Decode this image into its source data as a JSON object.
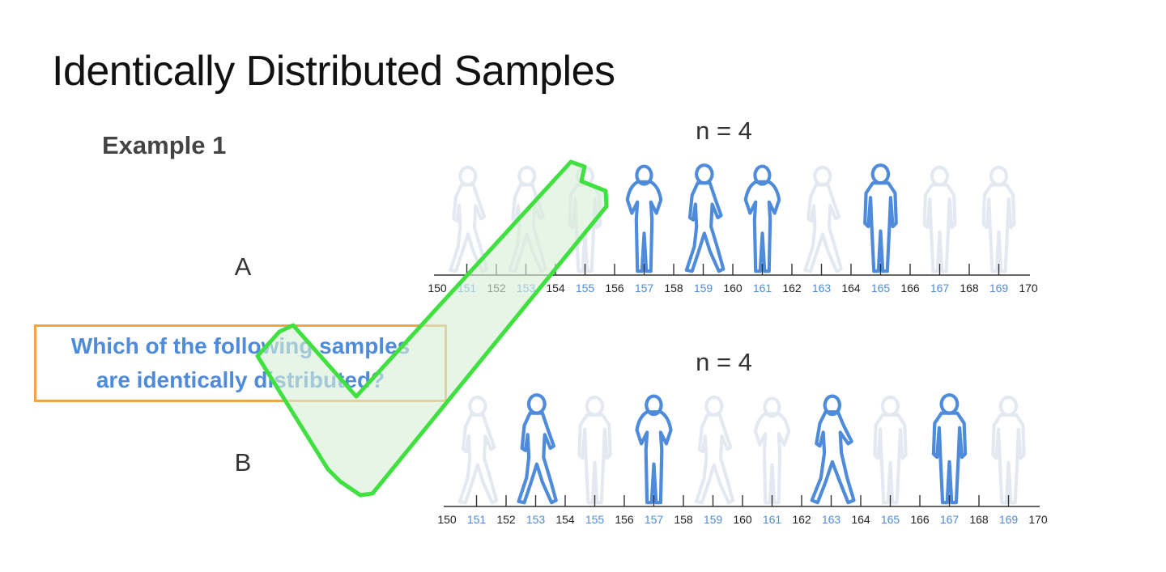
{
  "slide": {
    "title": "Identically Distributed Samples",
    "example_label": "Example 1",
    "question_line1": "Which of the following samples",
    "question_line2": "are identically distributed?"
  },
  "colors": {
    "blue": "#4e8cdb",
    "faded": "#e4e8f0",
    "box_border": "#f0a24c",
    "check_green": "#3fe03f",
    "check_fill": "#d8efd8"
  },
  "rows": [
    {
      "label": "A",
      "n_label": "n = 4",
      "ticks": [
        "150",
        "151",
        "152",
        "153",
        "154",
        "155",
        "156",
        "157",
        "158",
        "159",
        "160",
        "161",
        "162",
        "163",
        "164",
        "165",
        "166",
        "167",
        "168",
        "169",
        "170"
      ],
      "blue_ticks": [
        "151",
        "153",
        "155",
        "157",
        "159",
        "161",
        "163",
        "165",
        "167",
        "169"
      ],
      "people": [
        {
          "x": 151,
          "type": "walk",
          "sampled": false
        },
        {
          "x": 153,
          "type": "walk",
          "sampled": false
        },
        {
          "x": 155,
          "type": "stand",
          "sampled": false
        },
        {
          "x": 157,
          "type": "woman",
          "sampled": true
        },
        {
          "x": 159,
          "type": "walk",
          "sampled": true
        },
        {
          "x": 161,
          "type": "woman",
          "sampled": true
        },
        {
          "x": 163,
          "type": "walk",
          "sampled": false
        },
        {
          "x": 165,
          "type": "stand",
          "sampled": true
        },
        {
          "x": 167,
          "type": "stand",
          "sampled": false
        },
        {
          "x": 169,
          "type": "stand",
          "sampled": false
        }
      ]
    },
    {
      "label": "B",
      "n_label": "n = 4",
      "ticks": [
        "150",
        "151",
        "152",
        "153",
        "154",
        "155",
        "156",
        "157",
        "158",
        "159",
        "160",
        "161",
        "162",
        "163",
        "164",
        "165",
        "166",
        "167",
        "168",
        "169",
        "170"
      ],
      "blue_ticks": [
        "151",
        "153",
        "155",
        "157",
        "159",
        "161",
        "163",
        "165",
        "167",
        "169"
      ],
      "people": [
        {
          "x": 151,
          "type": "walk",
          "sampled": false
        },
        {
          "x": 153,
          "type": "walk",
          "sampled": true
        },
        {
          "x": 155,
          "type": "stand",
          "sampled": false
        },
        {
          "x": 157,
          "type": "woman",
          "sampled": true
        },
        {
          "x": 159,
          "type": "walk",
          "sampled": false
        },
        {
          "x": 161,
          "type": "woman",
          "sampled": false
        },
        {
          "x": 163,
          "type": "woman-walk",
          "sampled": true
        },
        {
          "x": 165,
          "type": "stand",
          "sampled": false
        },
        {
          "x": 167,
          "type": "stand",
          "sampled": true
        },
        {
          "x": 169,
          "type": "stand",
          "sampled": false
        }
      ]
    }
  ]
}
